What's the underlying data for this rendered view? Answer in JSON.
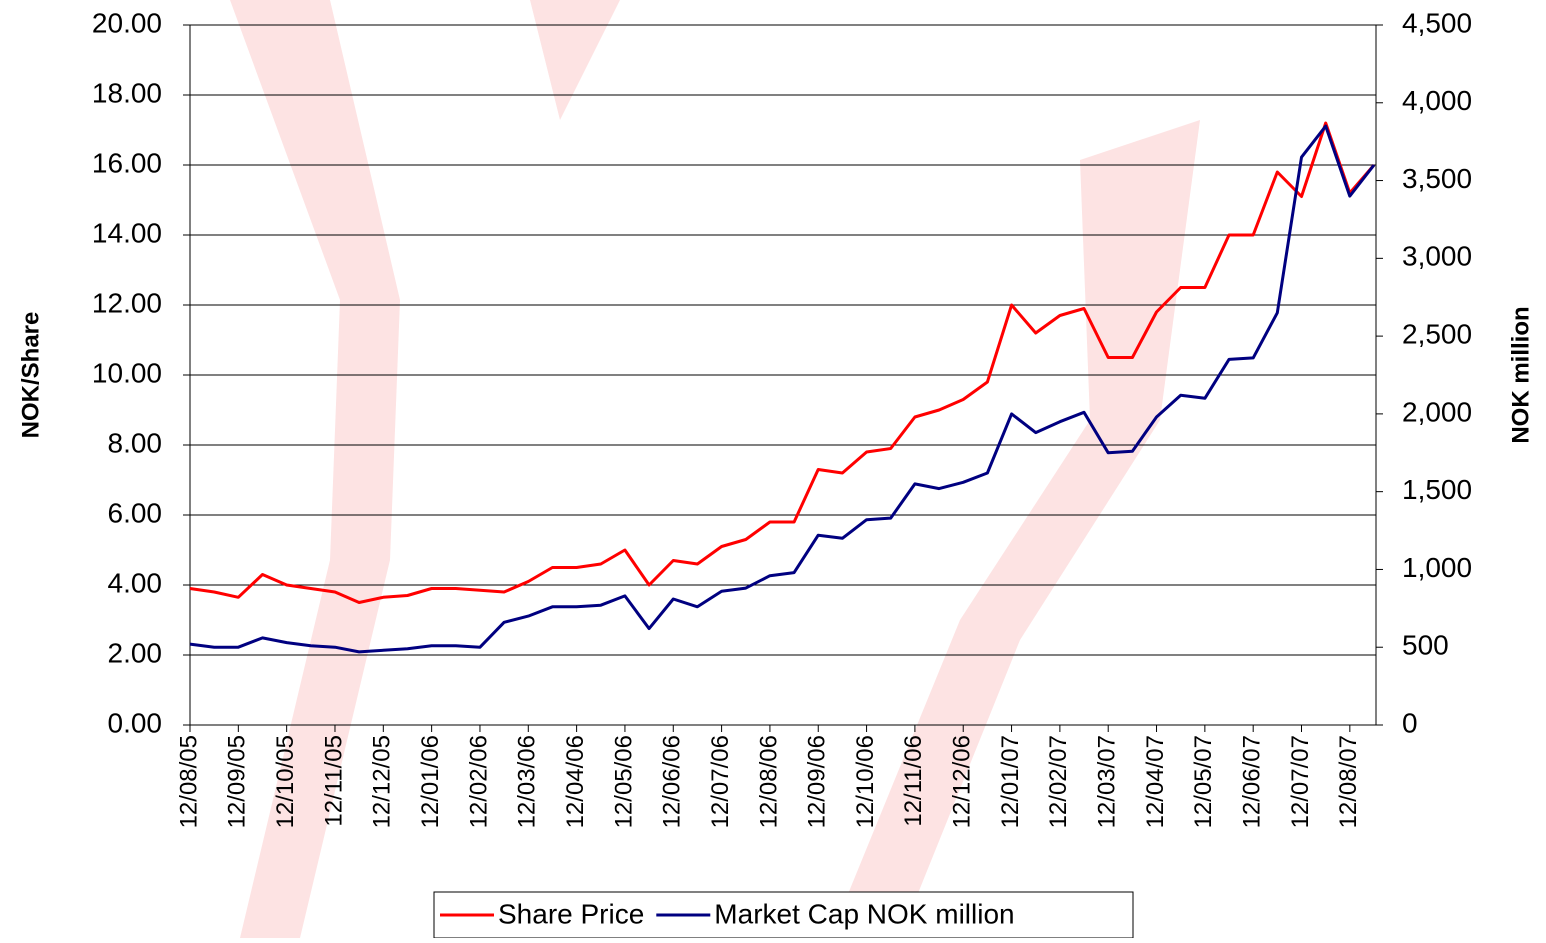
{
  "chart_data": {
    "type": "line",
    "ylabel": "NOK/Share",
    "y2label": "NOK million",
    "categories": [
      "12/08/05",
      null,
      "12/09/05",
      null,
      "12/10/05",
      null,
      "12/11/05",
      null,
      "12/12/05",
      null,
      "12/01/06",
      null,
      "12/02/06",
      null,
      "12/03/06",
      null,
      "12/04/06",
      null,
      "12/05/06",
      null,
      "12/06/06",
      null,
      "12/07/06",
      null,
      "12/08/06",
      null,
      "12/09/06",
      null,
      "12/10/06",
      null,
      "12/11/06",
      null,
      "12/12/06",
      null,
      "12/01/07",
      null,
      "12/02/07",
      null,
      "12/03/07",
      null,
      "12/04/07",
      null,
      "12/05/07",
      null,
      "12/06/07",
      null,
      "12/07/07",
      null,
      "12/08/07",
      null
    ],
    "series": [
      {
        "name": "Share Price",
        "color": "#ff0000",
        "values": [
          3.9,
          3.8,
          3.65,
          4.3,
          4.0,
          3.9,
          3.8,
          3.5,
          3.65,
          3.7,
          3.9,
          3.9,
          3.85,
          3.8,
          4.1,
          4.5,
          4.5,
          4.6,
          5.0,
          4.0,
          4.7,
          4.6,
          5.1,
          5.3,
          5.8,
          5.8,
          7.3,
          7.2,
          7.8,
          7.9,
          8.8,
          9.0,
          9.3,
          9.8,
          12.0,
          11.2,
          11.7,
          11.9,
          10.5,
          10.5,
          11.8,
          12.5,
          12.5,
          14.0,
          14.0,
          15.8,
          15.1,
          17.2,
          15.2,
          16.0
        ]
      },
      {
        "name": "Market Cap NOK million",
        "color": "#000080",
        "axis": "y2",
        "values": [
          520,
          500,
          500,
          560,
          530,
          510,
          500,
          470,
          480,
          490,
          510,
          510,
          500,
          660,
          700,
          760,
          760,
          770,
          830,
          620,
          810,
          760,
          860,
          880,
          960,
          980,
          1220,
          1200,
          1320,
          1330,
          1550,
          1520,
          1560,
          1620,
          2000,
          1880,
          1950,
          2010,
          1750,
          1760,
          1980,
          2120,
          2100,
          2350,
          2360,
          2650,
          3650,
          3850,
          3400,
          3600
        ]
      }
    ],
    "ylim": [
      0,
      20
    ],
    "yticks": [
      {
        "value": 0,
        "label": "0.00"
      },
      {
        "value": 2,
        "label": "2.00"
      },
      {
        "value": 4,
        "label": "4.00"
      },
      {
        "value": 6,
        "label": "6.00"
      },
      {
        "value": 8,
        "label": "8.00"
      },
      {
        "value": 10,
        "label": "10.00"
      },
      {
        "value": 12,
        "label": "12.00"
      },
      {
        "value": 14,
        "label": "14.00"
      },
      {
        "value": 16,
        "label": "16.00"
      },
      {
        "value": 18,
        "label": "18.00"
      },
      {
        "value": 20,
        "label": "20.00"
      }
    ],
    "y2lim": [
      0,
      4500
    ],
    "y2ticks": [
      0,
      500,
      {
        "value": 1000,
        "label": "1,000"
      },
      {
        "value": 1500,
        "label": "1,500"
      },
      {
        "value": 2000,
        "label": "2,000"
      },
      {
        "value": 2500,
        "label": "2,500"
      },
      {
        "value": 3000,
        "label": "3,000"
      },
      {
        "value": 3500,
        "label": "3,500"
      },
      {
        "value": 4000,
        "label": "4,000"
      },
      {
        "value": 4500,
        "label": "4,500"
      }
    ],
    "grid": true,
    "legend": "bottom"
  }
}
